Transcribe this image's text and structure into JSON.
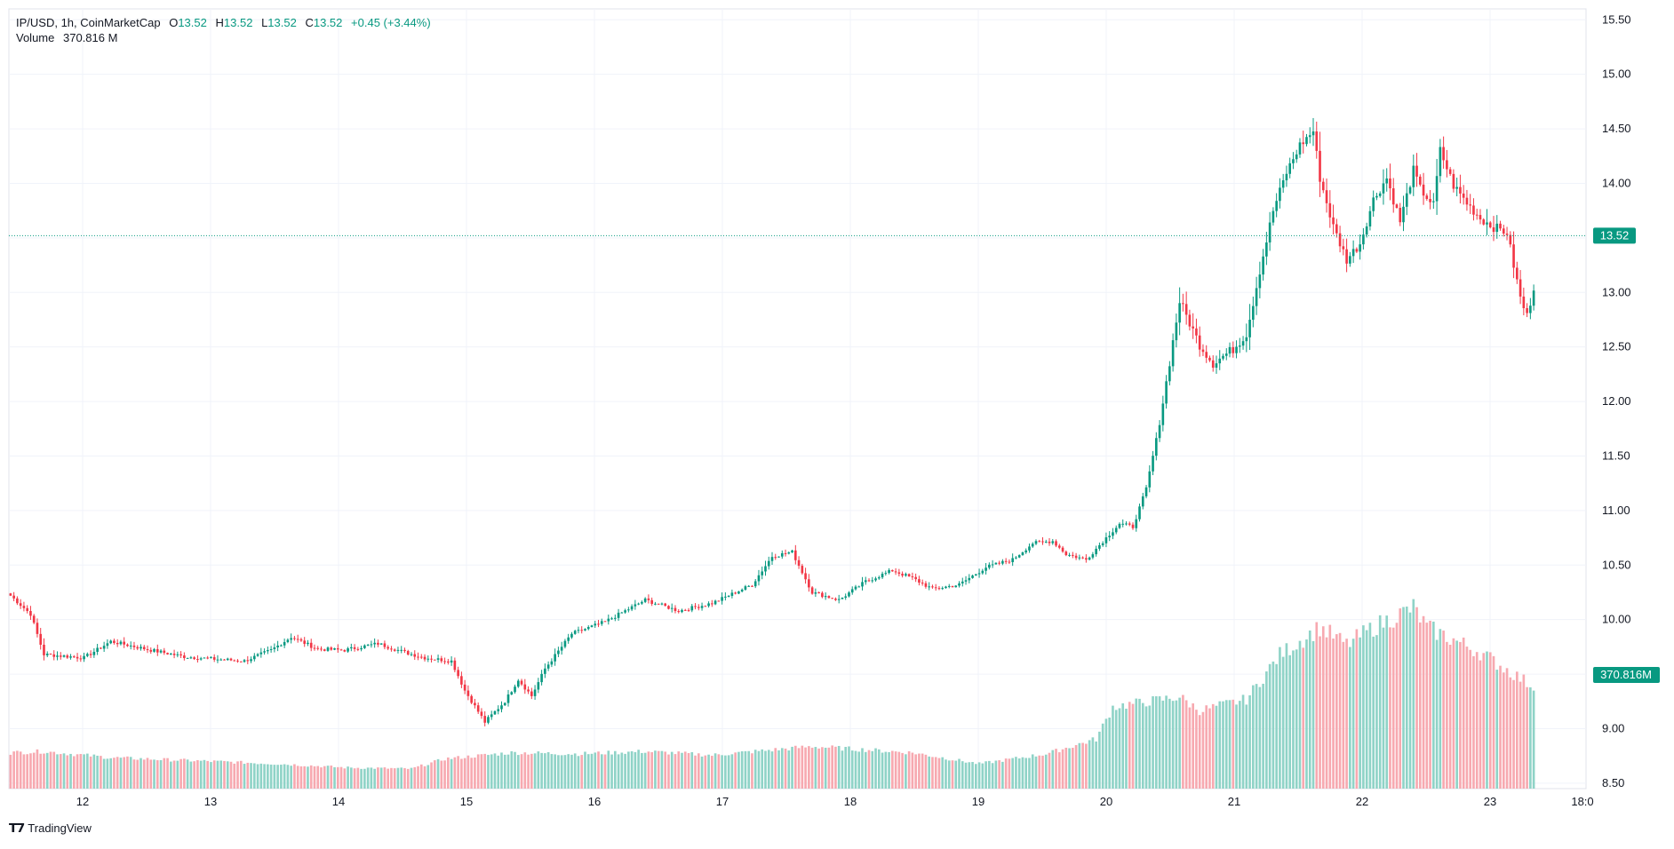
{
  "header": {
    "symbol": "IP/USD, 1h, CoinMarketCap",
    "open_label": "O",
    "open": "13.52",
    "high_label": "H",
    "high": "13.52",
    "low_label": "L",
    "low": "13.52",
    "close_label": "C",
    "close": "13.52",
    "change": "+0.45 (+3.44%)",
    "volume_label": "Volume",
    "volume_value": "370.816 M"
  },
  "brand": {
    "name": "TradingView"
  },
  "colors": {
    "up": "#089981",
    "down": "#f23645",
    "vol_up": "#8fd3c7",
    "vol_down": "#f7a9b0",
    "grid": "#f0f3fa"
  },
  "chart_data": {
    "type": "candlestick",
    "interval": "1h",
    "ylim": [
      8.45,
      15.6
    ],
    "y_ticks": [
      "15.50",
      "15.00",
      "14.50",
      "14.00",
      "13.50",
      "13.00",
      "12.50",
      "12.00",
      "11.50",
      "11.00",
      "10.50",
      "10.00",
      "9.50",
      "9.00",
      "8.50"
    ],
    "x_ticks": [
      "12",
      "13",
      "14",
      "15",
      "16",
      "17",
      "18",
      "19",
      "20",
      "21",
      "22",
      "23",
      "18:0"
    ],
    "last_price": "13.52",
    "last_volume": "370.816M",
    "grid": true,
    "anchors": [
      [
        0,
        10.22
      ],
      [
        6,
        10.05
      ],
      [
        10,
        9.68
      ],
      [
        22,
        9.65
      ],
      [
        30,
        9.8
      ],
      [
        42,
        9.72
      ],
      [
        52,
        9.66
      ],
      [
        60,
        9.64
      ],
      [
        70,
        9.62
      ],
      [
        78,
        9.72
      ],
      [
        84,
        9.84
      ],
      [
        92,
        9.73
      ],
      [
        100,
        9.72
      ],
      [
        110,
        9.78
      ],
      [
        118,
        9.7
      ],
      [
        124,
        9.65
      ],
      [
        132,
        9.62
      ],
      [
        136,
        9.35
      ],
      [
        142,
        9.06
      ],
      [
        148,
        9.25
      ],
      [
        152,
        9.45
      ],
      [
        156,
        9.3
      ],
      [
        160,
        9.55
      ],
      [
        168,
        9.87
      ],
      [
        178,
        9.98
      ],
      [
        190,
        10.18
      ],
      [
        200,
        10.08
      ],
      [
        210,
        10.15
      ],
      [
        222,
        10.32
      ],
      [
        228,
        10.58
      ],
      [
        234,
        10.62
      ],
      [
        240,
        10.25
      ],
      [
        248,
        10.18
      ],
      [
        256,
        10.35
      ],
      [
        264,
        10.45
      ],
      [
        270,
        10.38
      ],
      [
        276,
        10.28
      ],
      [
        284,
        10.32
      ],
      [
        292,
        10.48
      ],
      [
        300,
        10.55
      ],
      [
        306,
        10.7
      ],
      [
        312,
        10.72
      ],
      [
        316,
        10.6
      ],
      [
        322,
        10.55
      ],
      [
        328,
        10.75
      ],
      [
        332,
        10.88
      ],
      [
        336,
        10.85
      ],
      [
        340,
        11.2
      ],
      [
        344,
        11.8
      ],
      [
        348,
        12.55
      ],
      [
        350,
        12.92
      ],
      [
        356,
        12.52
      ],
      [
        360,
        12.35
      ],
      [
        366,
        12.48
      ],
      [
        370,
        12.62
      ],
      [
        374,
        13.2
      ],
      [
        378,
        13.75
      ],
      [
        382,
        14.1
      ],
      [
        386,
        14.35
      ],
      [
        390,
        14.48
      ],
      [
        392,
        14.05
      ],
      [
        396,
        13.6
      ],
      [
        400,
        13.3
      ],
      [
        404,
        13.45
      ],
      [
        408,
        13.85
      ],
      [
        412,
        14.05
      ],
      [
        416,
        13.65
      ],
      [
        420,
        14.12
      ],
      [
        422,
        13.95
      ],
      [
        426,
        13.8
      ],
      [
        428,
        14.3
      ],
      [
        432,
        13.98
      ],
      [
        436,
        13.82
      ],
      [
        440,
        13.68
      ],
      [
        444,
        13.6
      ],
      [
        448,
        13.55
      ],
      [
        450,
        13.25
      ],
      [
        452,
        12.95
      ],
      [
        454,
        12.78
      ],
      [
        456,
        13.05
      ]
    ],
    "volume_anchors": [
      [
        0,
        14.5
      ],
      [
        10,
        15.0
      ],
      [
        30,
        12.5
      ],
      [
        60,
        11.0
      ],
      [
        80,
        10.0
      ],
      [
        100,
        8.5
      ],
      [
        120,
        8.0
      ],
      [
        130,
        12.0
      ],
      [
        150,
        14.5
      ],
      [
        170,
        14.0
      ],
      [
        190,
        15.0
      ],
      [
        210,
        13.5
      ],
      [
        240,
        17.0
      ],
      [
        270,
        14.5
      ],
      [
        290,
        10.0
      ],
      [
        310,
        14.0
      ],
      [
        325,
        20.0
      ],
      [
        330,
        33.0
      ],
      [
        340,
        35.0
      ],
      [
        350,
        37.0
      ],
      [
        356,
        31.5
      ],
      [
        370,
        36.0
      ],
      [
        380,
        54.0
      ],
      [
        392,
        65.0
      ],
      [
        400,
        58.0
      ],
      [
        408,
        65.0
      ],
      [
        420,
        73.0
      ],
      [
        424,
        65.0
      ],
      [
        440,
        55.0
      ],
      [
        456,
        41.0
      ]
    ],
    "candle_count": 457
  }
}
